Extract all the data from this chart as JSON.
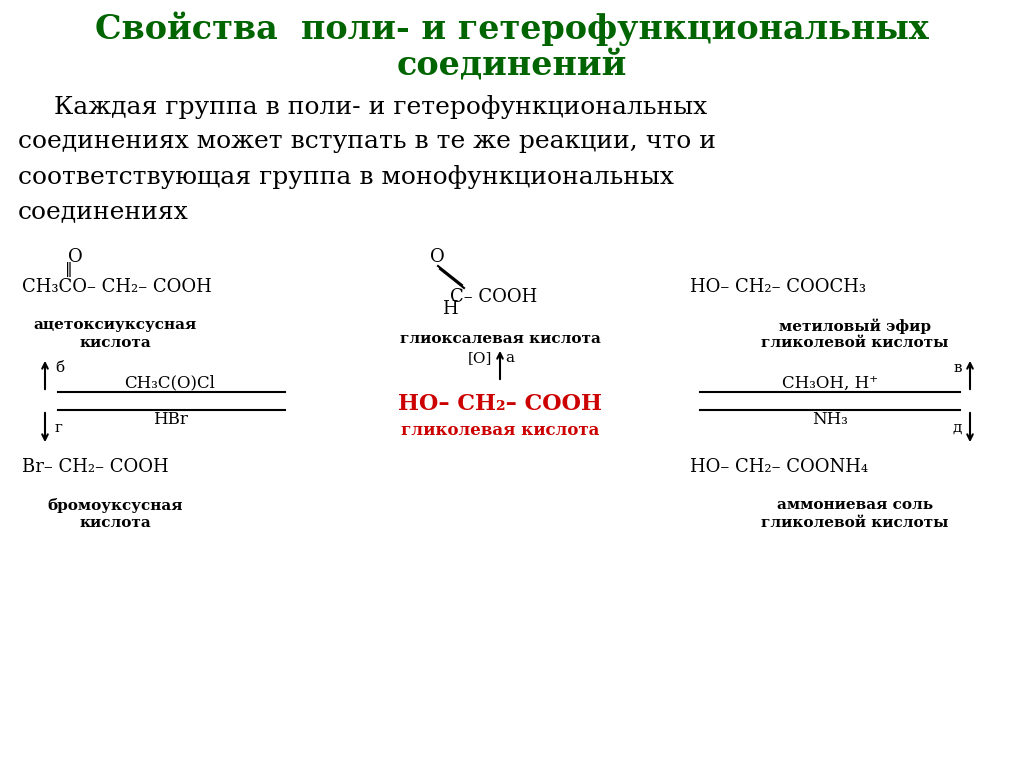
{
  "title_line1": "Свойства  поли- и гетерофункциональных",
  "title_line2": "соединений",
  "title_color": "#006400",
  "body_line1": "   Каждая группа в поли- и гетерофункциональных",
  "body_line2": "соединениях может вступать в те же реакции, что и",
  "body_line3": "соответствующая группа в монофункциональных",
  "body_line4": "соединениях",
  "body_color": "#000000",
  "background_color": "#ffffff",
  "compound_color": "#000000",
  "highlight_color": "#cc0000"
}
